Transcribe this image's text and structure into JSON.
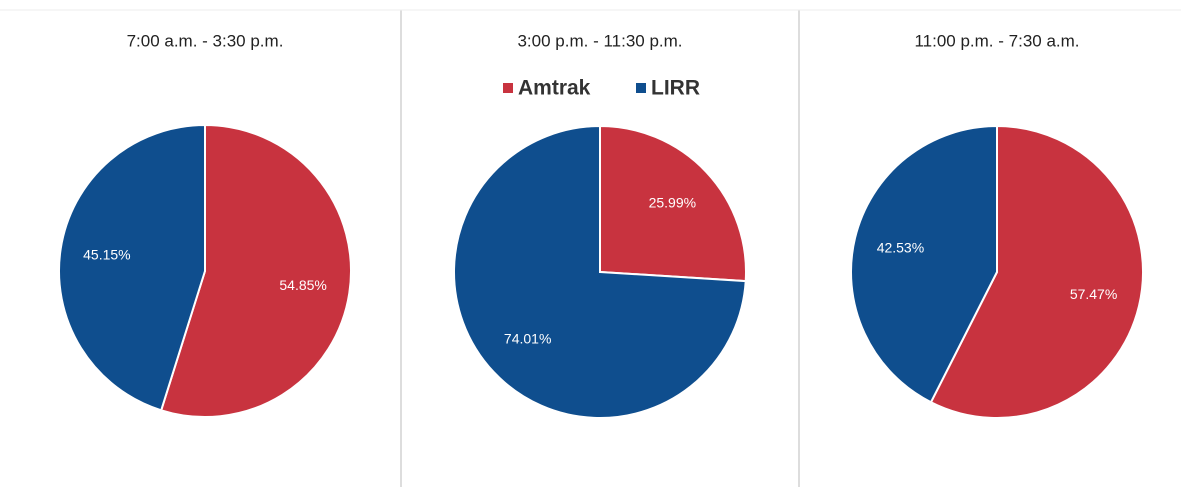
{
  "chart_data": [
    {
      "type": "pie",
      "title": "7:00 a.m. - 3:30 p.m.",
      "values": [
        54.85,
        45.15
      ],
      "value_labels": [
        "54.85%",
        "45.15%"
      ],
      "colors": [
        "#c8333f",
        "#0f4e8e"
      ]
    },
    {
      "type": "pie",
      "title": "3:00 p.m. - 11:30 p.m.",
      "categories": [
        "Amtrak",
        "LIRR"
      ],
      "values": [
        25.99,
        74.01
      ],
      "value_labels": [
        "25.99%",
        "74.01%"
      ],
      "colors": [
        "#c8333f",
        "#0f4e8e"
      ],
      "legend": "top"
    },
    {
      "type": "pie",
      "title": "11:00 p.m. - 7:30 a.m.",
      "values": [
        57.47,
        42.53
      ],
      "value_labels": [
        "57.47%",
        "42.53%"
      ],
      "colors": [
        "#c8333f",
        "#0f4e8e"
      ]
    }
  ]
}
